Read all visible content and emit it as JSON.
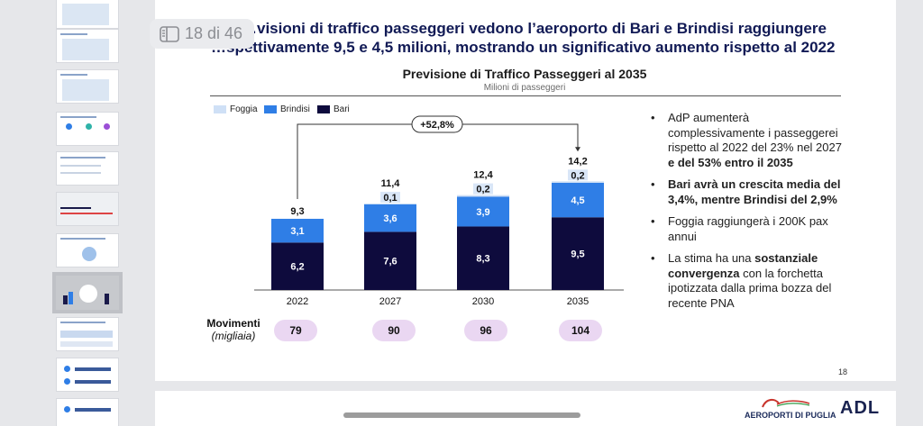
{
  "viewer": {
    "page_indicator": "18 di 46"
  },
  "slide": {
    "title_line1": "…visioni di traffico passeggeri vedono l’aeroporto di Bari e Brindisi raggiungere",
    "title_line2": "…spettivamente 9,5 e 4,5 milioni, mostrando un significativo aumento rispetto al 2022",
    "chart_title": "Previsione di Traffico Passeggeri al 2035",
    "chart_subtitle": "Milioni di passeggeri",
    "legend": [
      "Foggia",
      "Brindisi",
      "Bari"
    ],
    "movements_label_1": "Movimenti",
    "movements_label_2": "(migliaia)",
    "movements": [
      "79",
      "90",
      "96",
      "104"
    ],
    "bullets": [
      {
        "parts": [
          {
            "t": "AdP aumenterà complessivamente i passeggerei rispetto al 2022 del 23% nel 2027 ",
            "b": false
          },
          {
            "t": "e del 53% entro il 2035",
            "b": true
          }
        ]
      },
      {
        "parts": [
          {
            "t": "Bari avrà un crescita media del 3,4%, mentre Brindisi del 2,9%",
            "b": true
          }
        ]
      },
      {
        "parts": [
          {
            "t": "Foggia raggiungerà i 200K pax annui",
            "b": false
          }
        ]
      },
      {
        "parts": [
          {
            "t": "La stima ha una ",
            "b": false
          },
          {
            "t": "sostanziale convergenza",
            "b": true
          },
          {
            "t": " con la forchetta ipotizzata dalla prima bozza del recente PNA",
            "b": false
          }
        ]
      }
    ],
    "slide_number": "18",
    "footer_logo_text": "AEROPORTI DI PUGLIA",
    "footer_logo2_text": "ADL"
  },
  "colors": {
    "foggia": "#cfe0f6",
    "brindisi": "#2f7ee6",
    "bari": "#0e0b3d",
    "pill": "#ead7f2",
    "title": "#111a55"
  },
  "chart_data": {
    "type": "bar",
    "stacked": true,
    "title": "Previsione di Traffico Passeggeri al 2035",
    "subtitle": "Milioni di passeggeri",
    "categories": [
      "2022",
      "2027",
      "2030",
      "2035"
    ],
    "series": [
      {
        "name": "Bari",
        "values": [
          6.2,
          7.6,
          8.3,
          9.5
        ],
        "labels": [
          "6,2",
          "7,6",
          "8,3",
          "9,5"
        ]
      },
      {
        "name": "Brindisi",
        "values": [
          3.1,
          3.6,
          3.9,
          4.5
        ],
        "labels": [
          "3,1",
          "3,6",
          "3,9",
          "4,5"
        ]
      },
      {
        "name": "Foggia",
        "values": [
          0.0,
          0.1,
          0.2,
          0.2
        ],
        "labels": [
          "",
          "0,1",
          "0,2",
          "0,2"
        ]
      }
    ],
    "totals": [
      "9,3",
      "11,4",
      "12,4",
      "14,2"
    ],
    "annotation": "+52,8%",
    "ylim": [
      0,
      16
    ]
  }
}
